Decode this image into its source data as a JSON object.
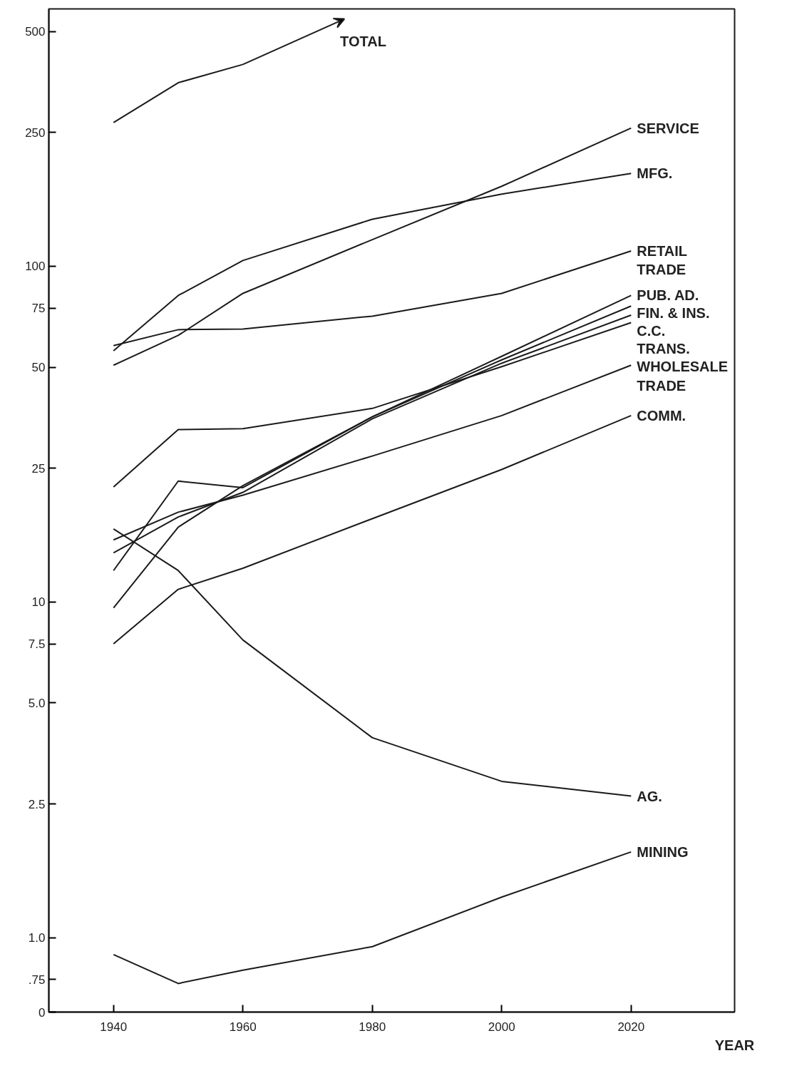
{
  "chart_data": {
    "type": "line",
    "xlabel": "YEAR",
    "log": "y",
    "grid": false,
    "marker": "none",
    "line_style": "solid",
    "xlim": [
      1930,
      2036
    ],
    "xticks": [
      1940,
      1960,
      1980,
      2000,
      2020
    ],
    "ylim": [
      0,
      584
    ],
    "annotations": [
      "TOTAL"
    ],
    "yticks": [
      0,
      {
        "value": 0.75,
        "label": ".75"
      },
      {
        "value": 1,
        "label": "1.0"
      },
      {
        "value": 2.5,
        "label": "2.5"
      },
      {
        "value": 5,
        "label": "5.0"
      },
      {
        "value": 7.5,
        "label": "7.5"
      },
      {
        "value": 10,
        "label": "10"
      },
      {
        "value": 25,
        "label": "25"
      },
      {
        "value": 50,
        "label": "50"
      },
      {
        "value": 75,
        "label": "75"
      },
      {
        "value": 100,
        "label": "100"
      },
      {
        "value": 250,
        "label": "250"
      },
      {
        "value": 500,
        "label": "500"
      }
    ],
    "x": [
      1940,
      1950,
      1960,
      1980,
      2000,
      2020
    ],
    "series": [
      {
        "color": "#1a1a1a",
        "x": [
          1940,
          1950,
          1960
        ],
        "values": [
          268,
          352,
          399
        ]
      },
      {
        "name": "SERVICE",
        "color": "#1a1a1a",
        "values": [
          50.7,
          62.2,
          83,
          120,
          173,
          258
        ]
      },
      {
        "name": "MFG.",
        "color": "#1a1a1a",
        "values": [
          56,
          81.8,
          104,
          138,
          164,
          189
        ]
      },
      {
        "name": "RETAIL\nTRADE",
        "color": "#1a1a1a",
        "values": [
          58,
          64.7,
          65,
          71,
          83,
          111
        ]
      },
      {
        "name": "PUB. AD.",
        "color": "#1a1a1a",
        "values": [
          9.6,
          16.7,
          22.2,
          35.6,
          53.9,
          81.8
        ]
      },
      {
        "name": "FIN. & INS.",
        "color": "#1a1a1a",
        "values": [
          12.4,
          22.9,
          21.9,
          35.6,
          52.6,
          76.1
        ]
      },
      {
        "name": "C.C.",
        "color": "#1a1a1a",
        "values": [
          14.0,
          17.9,
          21.2,
          35.1,
          51.4,
          71.5
        ]
      },
      {
        "name": "TRANS.",
        "color": "#1a1a1a",
        "values": [
          22.0,
          32.6,
          32.8,
          37.7,
          50.2,
          67.9
        ]
      },
      {
        "name": "WHOLESALE\nTRADE",
        "color": "#1a1a1a",
        "values": [
          15.3,
          18.5,
          20.8,
          27.2,
          35.9,
          50.7
        ]
      },
      {
        "name": "COMM.",
        "color": "#1a1a1a",
        "values": [
          7.5,
          10.9,
          12.6,
          17.7,
          24.8,
          35.9
        ]
      },
      {
        "name": "AG.",
        "color": "#1a1a1a",
        "values": [
          16.5,
          12.4,
          7.7,
          3.94,
          2.92,
          2.64
        ]
      },
      {
        "name": "MINING",
        "color": "#1a1a1a",
        "values": [
          0.89,
          0.73,
          0.8,
          0.94,
          1.32,
          1.8
        ]
      }
    ]
  }
}
